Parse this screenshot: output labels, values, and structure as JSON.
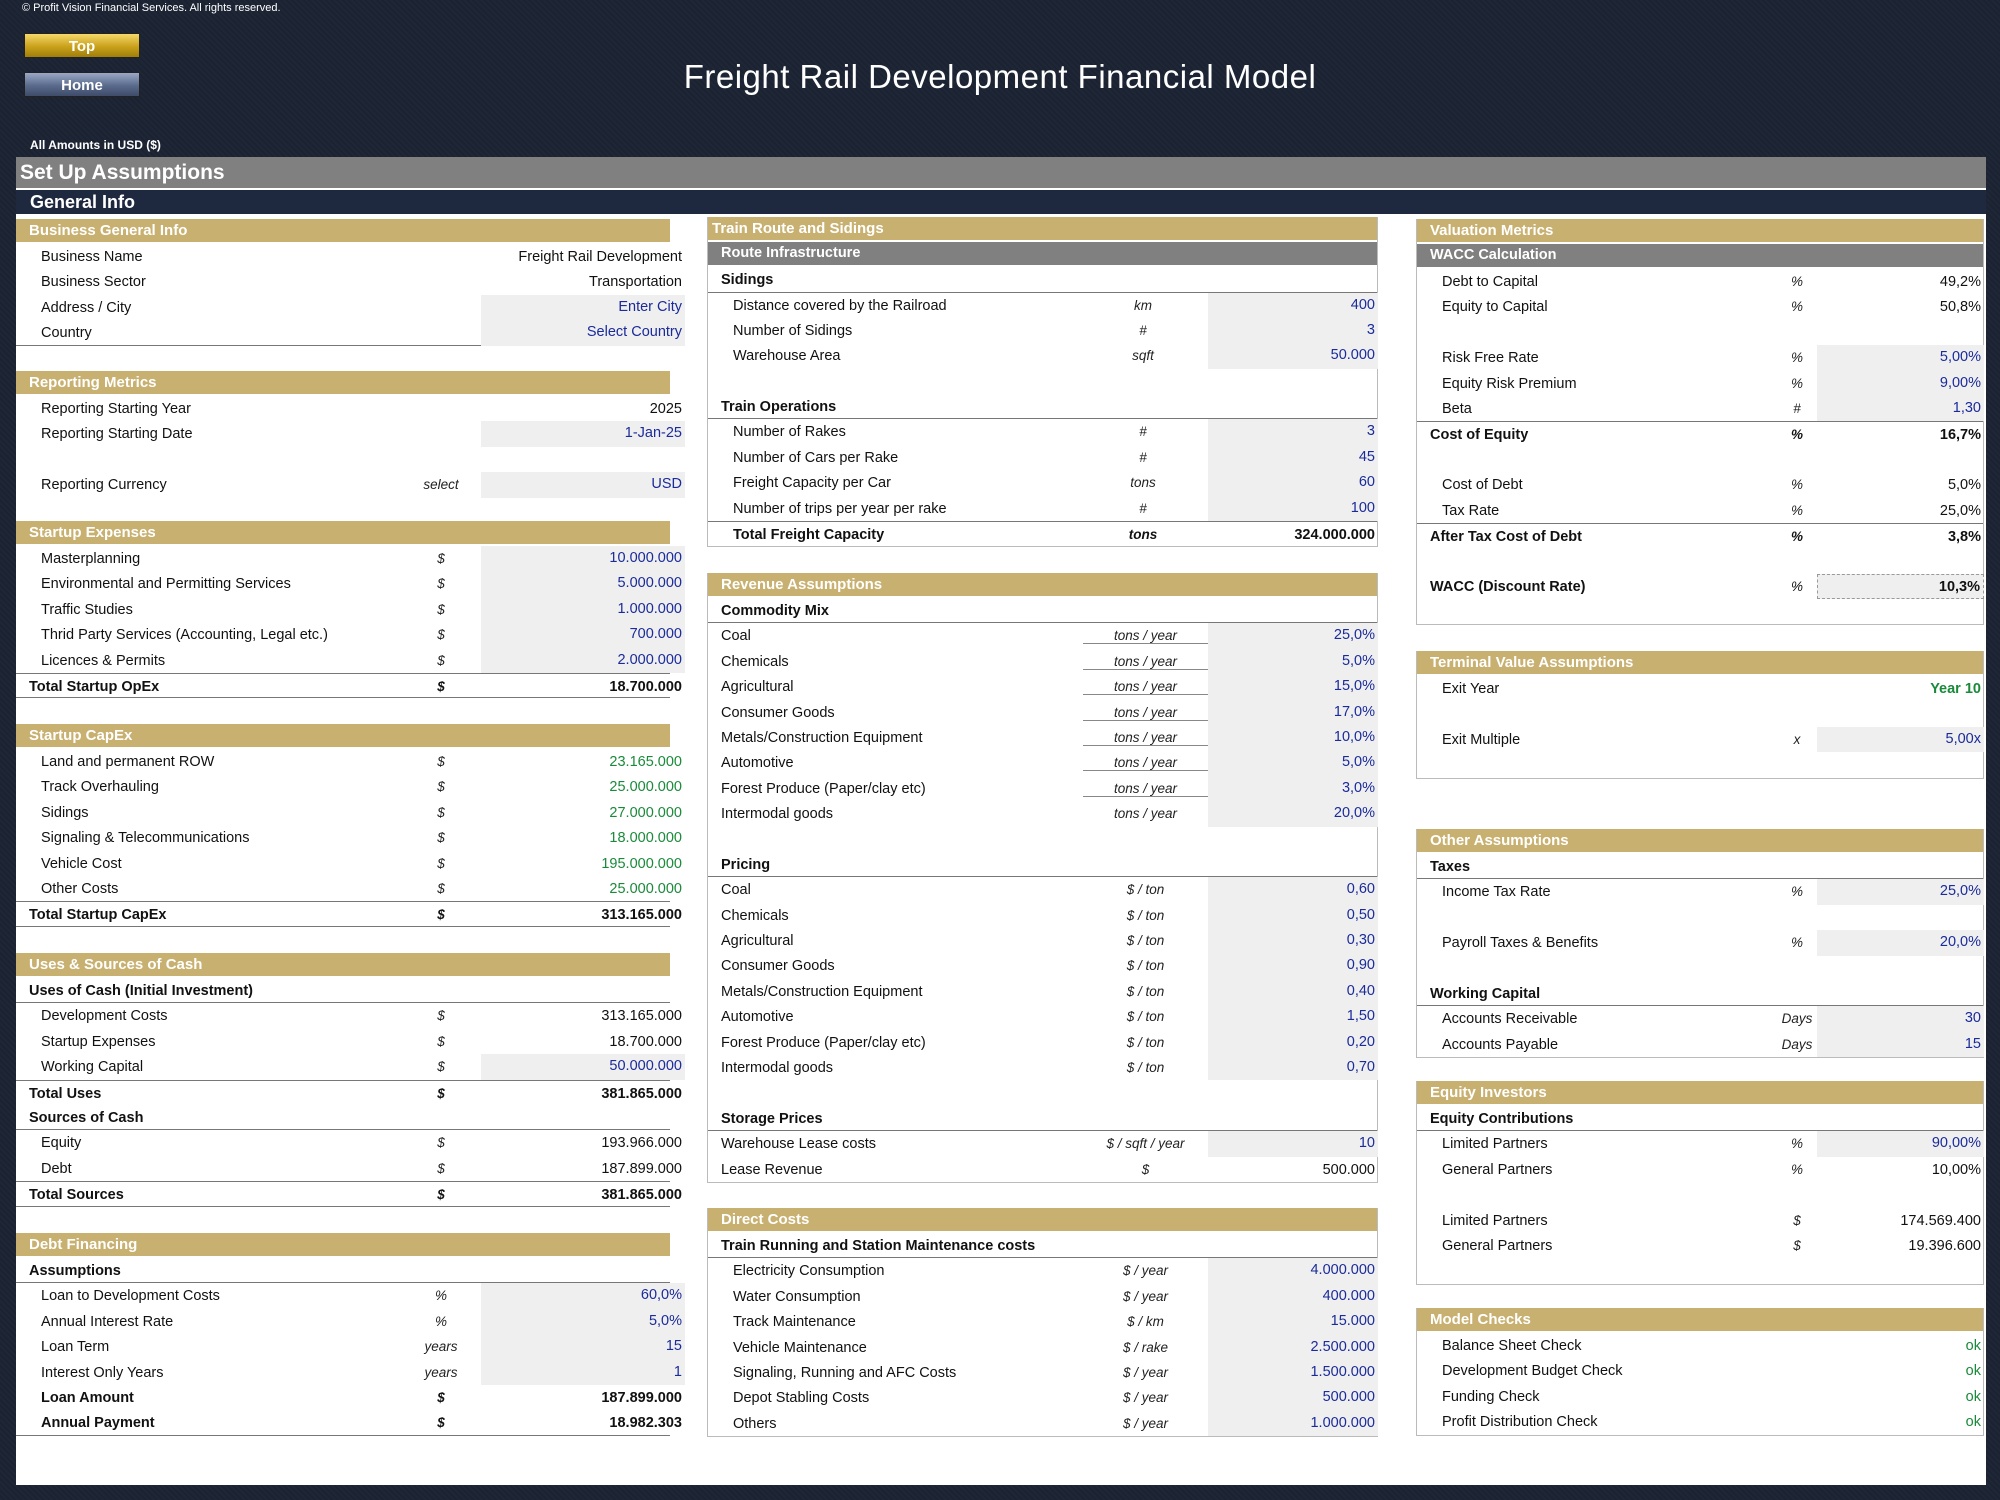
{
  "header": {
    "copyright": "© Profit Vision Financial Services. All rights reserved.",
    "top_button": "Top",
    "home_button": "Home",
    "title": "Freight Rail Development Financial Model",
    "amounts_label": "All Amounts in  USD ($)",
    "setup_title": "Set Up Assumptions",
    "general_info": "General Info"
  },
  "colors": {
    "gold": "#c8b070",
    "navy": "#1e2940",
    "grey": "#808080",
    "input_blue": "#1a2b9a",
    "green": "#1a8a3a"
  },
  "business": {
    "title": "Business General Info",
    "rows": [
      {
        "label": "Business Name",
        "value": "Freight Rail Development"
      },
      {
        "label": "Business Sector",
        "value": "Transportation"
      },
      {
        "label": "Address / City",
        "value": "Enter City"
      },
      {
        "label": "Country",
        "value": "Select Country"
      }
    ]
  },
  "reporting": {
    "title": "Reporting Metrics",
    "start_year_label": "Reporting Starting Year",
    "start_year": "2025",
    "start_date_label": "Reporting Starting Date",
    "start_date": "1-Jan-25",
    "currency_label": "Reporting Currency",
    "currency_unit": "select",
    "currency": "USD"
  },
  "startup_exp": {
    "title": "Startup Expenses",
    "rows": [
      {
        "label": "Masterplanning",
        "unit": "$",
        "value": "10.000.000"
      },
      {
        "label": "Environmental and Permitting Services",
        "unit": "$",
        "value": "5.000.000"
      },
      {
        "label": "Traffic Studies",
        "unit": "$",
        "value": "1.000.000"
      },
      {
        "label": "Thrid Party Services (Accounting, Legal etc.)",
        "unit": "$",
        "value": "700.000"
      },
      {
        "label": "Licences & Permits",
        "unit": "$",
        "value": "2.000.000"
      }
    ],
    "total_label": "Total Startup OpEx",
    "total_unit": "$",
    "total": "18.700.000"
  },
  "startup_capex": {
    "title": "Startup CapEx",
    "rows": [
      {
        "label": "Land and permanent ROW",
        "unit": "$",
        "value": "23.165.000"
      },
      {
        "label": "Track Overhauling",
        "unit": "$",
        "value": "25.000.000"
      },
      {
        "label": "Sidings",
        "unit": "$",
        "value": "27.000.000"
      },
      {
        "label": "Signaling & Telecommunications",
        "unit": "$",
        "value": "18.000.000"
      },
      {
        "label": "Vehicle Cost",
        "unit": "$",
        "value": "195.000.000"
      },
      {
        "label": "Other Costs",
        "unit": "$",
        "value": "25.000.000"
      }
    ],
    "total_label": "Total Startup CapEx",
    "total_unit": "$",
    "total": "313.165.000"
  },
  "uses_sources": {
    "title": "Uses & Sources of Cash",
    "uses_title": "Uses of Cash (Initial Investment)",
    "uses": [
      {
        "label": "Development Costs",
        "unit": "$",
        "value": "313.165.000"
      },
      {
        "label": "Startup Expenses",
        "unit": "$",
        "value": "18.700.000"
      },
      {
        "label": "Working Capital",
        "unit": "$",
        "value": "50.000.000"
      }
    ],
    "total_uses_label": "Total Uses",
    "total_uses_unit": "$",
    "total_uses": "381.865.000",
    "sources_title": "Sources of Cash",
    "sources": [
      {
        "label": "Equity",
        "unit": "$",
        "value": "193.966.000"
      },
      {
        "label": "Debt",
        "unit": "$",
        "value": "187.899.000"
      }
    ],
    "total_sources_label": "Total Sources",
    "total_sources_unit": "$",
    "total_sources": "381.865.000"
  },
  "debt": {
    "title": "Debt Financing",
    "assumptions_title": "Assumptions",
    "rows": [
      {
        "label": "Loan to Development Costs",
        "unit": "%",
        "value": "60,0%"
      },
      {
        "label": "Annual Interest Rate",
        "unit": "%",
        "value": "5,0%"
      },
      {
        "label": "Loan Term",
        "unit": "years",
        "value": "15"
      },
      {
        "label": "Interest Only Years",
        "unit": "years",
        "value": "1"
      }
    ],
    "loan_amount_label": "Loan Amount",
    "loan_amount_unit": "$",
    "loan_amount": "187.899.000",
    "annual_payment_label": "Annual Payment",
    "annual_payment_unit": "$",
    "annual_payment": "18.982.303"
  },
  "route": {
    "title": "Train Route and Sidings",
    "infra_title": "Route Infrastructure",
    "sidings_title": "Sidings",
    "sidings": [
      {
        "label": "Distance covered by the Railroad",
        "unit": "km",
        "value": "400"
      },
      {
        "label": "Number of Sidings",
        "unit": "#",
        "value": "3"
      },
      {
        "label": "Warehouse Area",
        "unit": "sqft",
        "value": "50.000"
      }
    ],
    "ops_title": "Train Operations",
    "ops": [
      {
        "label": "Number of Rakes",
        "unit": "#",
        "value": "3"
      },
      {
        "label": "Number of Cars per Rake",
        "unit": "#",
        "value": "45"
      },
      {
        "label": "Freight Capacity per Car",
        "unit": "tons",
        "value": "60"
      },
      {
        "label": "Number of trips per year per rake",
        "unit": "#",
        "value": "100"
      }
    ],
    "total_label": "Total Freight Capacity",
    "total_unit": "tons",
    "total": "324.000.000"
  },
  "revenue": {
    "title": "Revenue Assumptions",
    "mix_title": "Commodity Mix",
    "mix": [
      {
        "label": "Coal",
        "unit": "tons / year",
        "value": "25,0%"
      },
      {
        "label": "Chemicals",
        "unit": "tons / year",
        "value": "5,0%"
      },
      {
        "label": "Agricultural",
        "unit": "tons / year",
        "value": "15,0%"
      },
      {
        "label": "Consumer Goods",
        "unit": "tons / year",
        "value": "17,0%"
      },
      {
        "label": "Metals/Construction Equipment",
        "unit": "tons / year",
        "value": "10,0%"
      },
      {
        "label": "Automotive",
        "unit": "tons / year",
        "value": "5,0%"
      },
      {
        "label": "Forest Produce (Paper/clay etc)",
        "unit": "tons / year",
        "value": "3,0%"
      },
      {
        "label": "Intermodal goods",
        "unit": "tons / year",
        "value": "20,0%"
      }
    ],
    "pricing_title": "Pricing",
    "pricing": [
      {
        "label": "Coal",
        "unit": "$ / ton",
        "value": "0,60"
      },
      {
        "label": "Chemicals",
        "unit": "$ / ton",
        "value": "0,50"
      },
      {
        "label": "Agricultural",
        "unit": "$ / ton",
        "value": "0,30"
      },
      {
        "label": "Consumer Goods",
        "unit": "$ / ton",
        "value": "0,90"
      },
      {
        "label": "Metals/Construction Equipment",
        "unit": "$ / ton",
        "value": "0,40"
      },
      {
        "label": "Automotive",
        "unit": "$ / ton",
        "value": "1,50"
      },
      {
        "label": "Forest Produce (Paper/clay etc)",
        "unit": "$ / ton",
        "value": "0,20"
      },
      {
        "label": "Intermodal goods",
        "unit": "$ / ton",
        "value": "0,70"
      }
    ],
    "storage_title": "Storage Prices",
    "lease_costs_label": "Warehouse Lease costs",
    "lease_costs_unit": "$ / sqft / year",
    "lease_costs": "10",
    "lease_rev_label": "Lease Revenue",
    "lease_rev_unit": "$",
    "lease_rev": "500.000"
  },
  "direct": {
    "title": "Direct Costs",
    "sub_title": "Train Running and Station Maintenance costs",
    "rows": [
      {
        "label": "Electricity Consumption",
        "unit": "$ / year",
        "value": "4.000.000"
      },
      {
        "label": "Water Consumption",
        "unit": "$ / year",
        "value": "400.000"
      },
      {
        "label": "Track Maintenance",
        "unit": "$ / km",
        "value": "15.000"
      },
      {
        "label": "Vehicle Maintenance",
        "unit": "$ / rake",
        "value": "2.500.000"
      },
      {
        "label": "Signaling, Running and AFC Costs",
        "unit": "$ / year",
        "value": "1.500.000"
      },
      {
        "label": "Depot Stabling Costs",
        "unit": "$ / year",
        "value": "500.000"
      },
      {
        "label": "Others",
        "unit": "$ / year",
        "value": "1.000.000"
      }
    ]
  },
  "valuation": {
    "title": "Valuation Metrics",
    "wacc_title": "WACC Calculation",
    "debt_cap_label": "Debt to Capital",
    "debt_cap_unit": "%",
    "debt_cap": "49,2%",
    "eq_cap_label": "Equity to Capital",
    "eq_cap_unit": "%",
    "eq_cap": "50,8%",
    "rf_label": "Risk Free Rate",
    "rf_unit": "%",
    "rf": "5,00%",
    "erp_label": "Equity Risk Premium",
    "erp_unit": "%",
    "erp": "9,00%",
    "beta_label": "Beta",
    "beta_unit": "#",
    "beta": "1,30",
    "coe_label": "Cost of Equity",
    "coe_unit": "%",
    "coe": "16,7%",
    "cod_label": "Cost of Debt",
    "cod_unit": "%",
    "cod": "5,0%",
    "tax_label": "Tax Rate",
    "tax_unit": "%",
    "tax": "25,0%",
    "atcod_label": "After Tax Cost of Debt",
    "atcod_unit": "%",
    "atcod": "3,8%",
    "wacc_label": "WACC (Discount Rate)",
    "wacc_unit": "%",
    "wacc": "10,3%"
  },
  "terminal": {
    "title": "Terminal Value Assumptions",
    "exit_year_label": "Exit Year",
    "exit_year": "Year 10",
    "exit_mult_label": "Exit Multiple",
    "exit_mult_unit": "x",
    "exit_mult": "5,00x"
  },
  "other": {
    "title": "Other Assumptions",
    "taxes_title": "Taxes",
    "income_tax_label": "Income Tax Rate",
    "income_tax_unit": "%",
    "income_tax": "25,0%",
    "payroll_label": "Payroll Taxes & Benefits",
    "payroll_unit": "%",
    "payroll": "20,0%",
    "wc_title": "Working Capital",
    "ar_label": "Accounts Receivable",
    "ar_unit": "Days",
    "ar": "30",
    "ap_label": "Accounts Payable",
    "ap_unit": "Days",
    "ap": "15"
  },
  "equity": {
    "title": "Equity Investors",
    "contrib_title": "Equity Contributions",
    "lp_pct_label": "Limited Partners",
    "lp_pct_unit": "%",
    "lp_pct": "90,00%",
    "gp_pct_label": "General Partners",
    "gp_pct_unit": "%",
    "gp_pct": "10,00%",
    "lp_amt_label": "Limited Partners",
    "lp_amt_unit": "$",
    "lp_amt": "174.569.400",
    "gp_amt_label": "General Partners",
    "gp_amt_unit": "$",
    "gp_amt": "19.396.600"
  },
  "checks": {
    "title": "Model Checks",
    "rows": [
      {
        "label": "Balance Sheet Check",
        "value": "ok"
      },
      {
        "label": "Development Budget Check",
        "value": "ok"
      },
      {
        "label": "Funding Check",
        "value": "ok"
      },
      {
        "label": "Profit Distribution Check",
        "value": "ok"
      }
    ]
  }
}
